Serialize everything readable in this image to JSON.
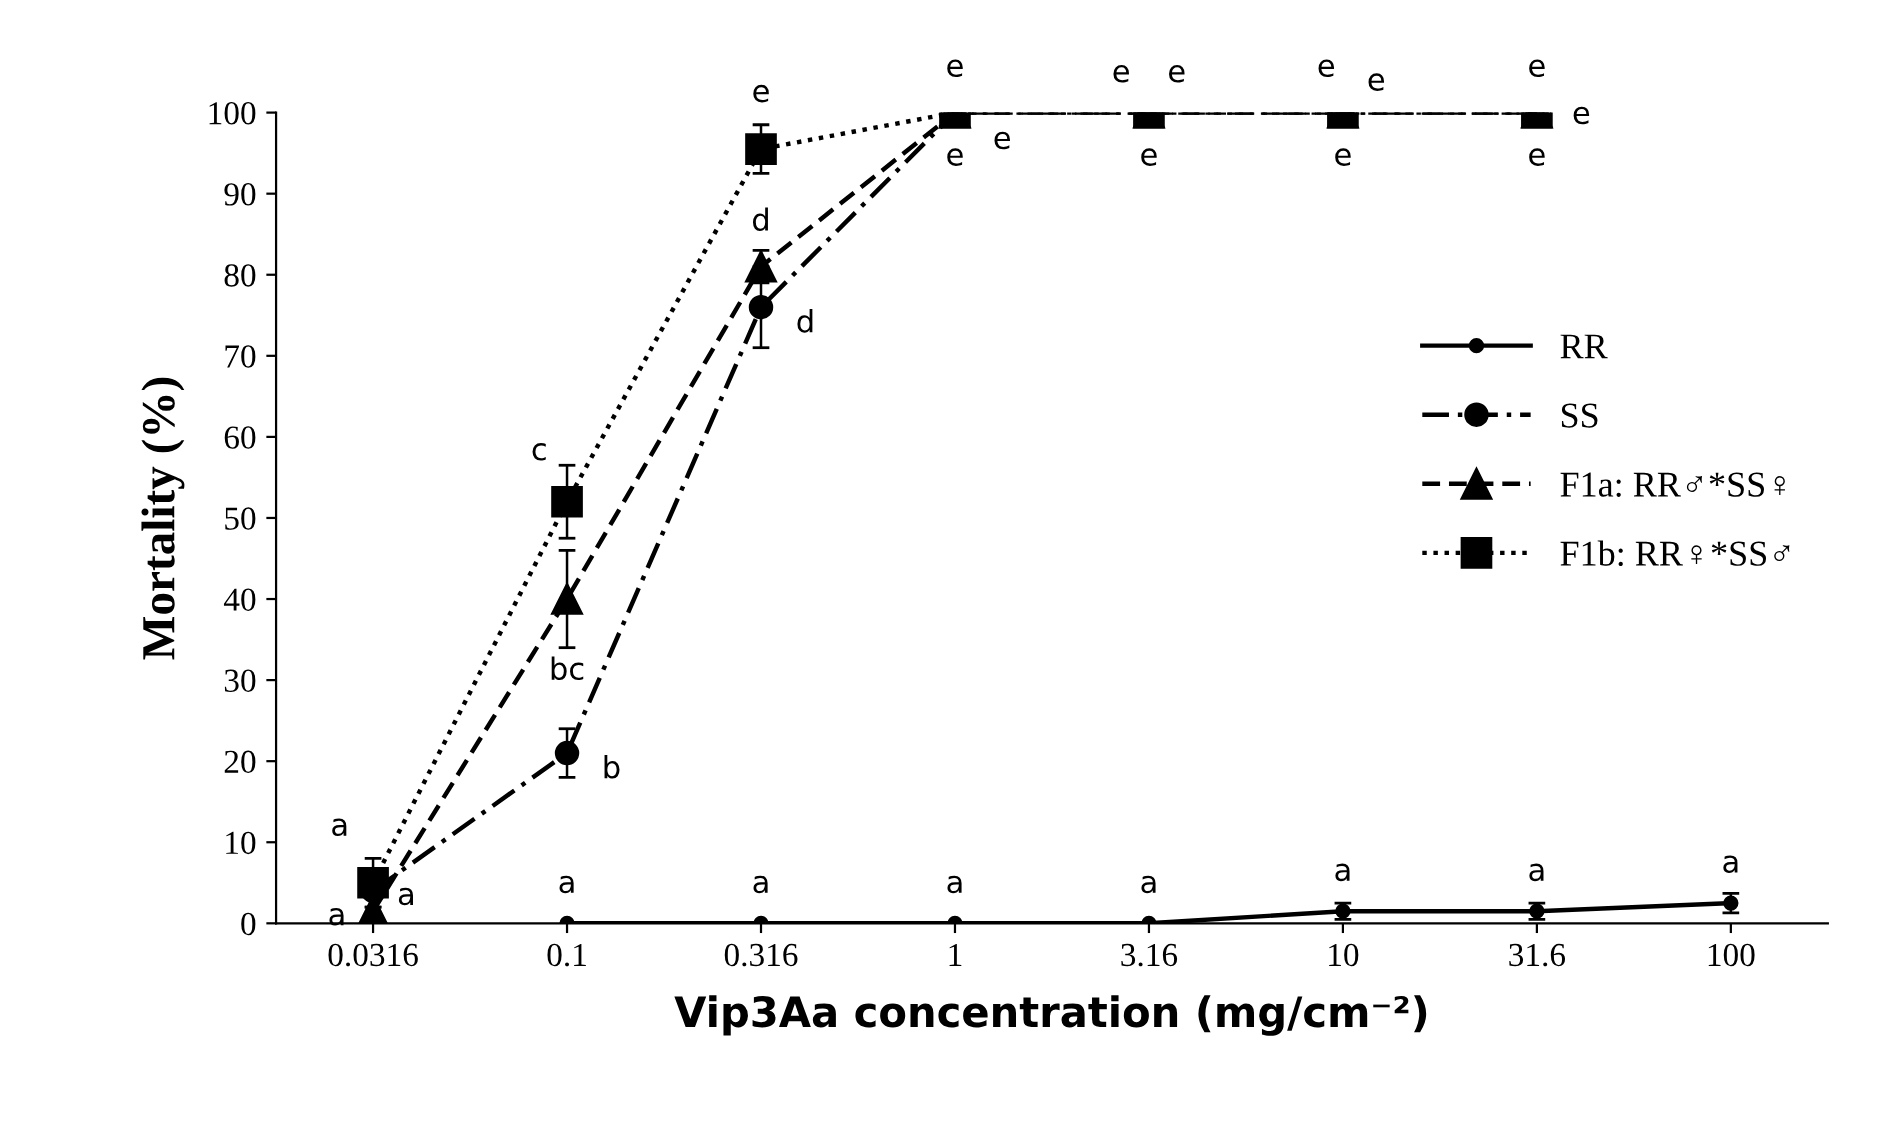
{
  "chart_data": {
    "type": "line",
    "xlabel": "Vip3Aa concentration (mg/cm⁻²)",
    "ylabel": "Mortality (%)",
    "categories": [
      "0.0316",
      "0.1",
      "0.316",
      "1",
      "3.16",
      "10",
      "31.6",
      "100"
    ],
    "ylim": [
      0,
      100
    ],
    "yticks": [
      0,
      10,
      20,
      30,
      40,
      50,
      60,
      70,
      80,
      90,
      100
    ],
    "grid": false,
    "legend": "right",
    "series": [
      {
        "name": "RR",
        "color": "#000000",
        "marker": "circle",
        "line_style": "solid",
        "values": [
          null,
          0,
          0,
          0,
          0,
          1.5,
          1.5,
          2.5
        ],
        "errors": [
          null,
          null,
          null,
          null,
          null,
          1,
          1,
          1.2
        ],
        "value_labels": [
          null,
          "a",
          "a",
          "a",
          "a",
          "a",
          "a",
          "a"
        ]
      },
      {
        "name": "SS",
        "color": "#000000",
        "marker": "circle",
        "line_style": "dashdot",
        "values": [
          4,
          21,
          76,
          100,
          100,
          100,
          100,
          null
        ],
        "errors": [
          2,
          3,
          5,
          null,
          null,
          null,
          null,
          null
        ],
        "value_labels": [
          "a",
          "b",
          "d",
          "e",
          "e",
          "e",
          "e",
          null
        ]
      },
      {
        "name": "F1a: RR♂*SS♀",
        "color": "#000000",
        "marker": "triangle",
        "line_style": "dashed",
        "values": [
          1.5,
          40,
          81,
          100,
          100,
          100,
          100,
          null
        ],
        "errors": [
          null,
          6,
          2,
          null,
          null,
          null,
          null,
          null
        ],
        "value_labels": [
          "a",
          "bc",
          "d",
          "e",
          "e",
          "e",
          "e",
          null
        ]
      },
      {
        "name": "F1b: RR♀*SS♂",
        "color": "#000000",
        "marker": "square",
        "line_style": "dotted",
        "values": [
          5,
          52,
          95.5,
          100,
          100,
          100,
          100,
          null
        ],
        "errors": [
          3,
          4.5,
          3,
          null,
          null,
          null,
          null,
          null
        ],
        "value_labels": [
          "a",
          "c",
          "e",
          "e",
          "e",
          "e",
          "e",
          null
        ]
      }
    ]
  }
}
